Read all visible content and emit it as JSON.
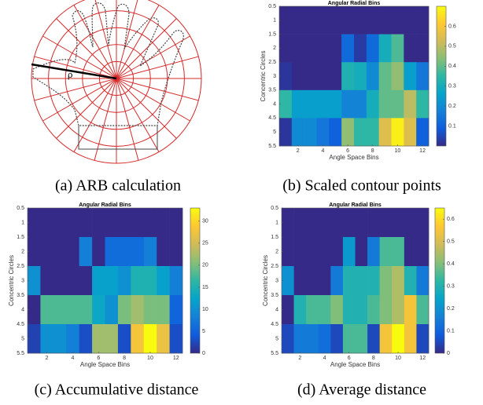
{
  "figure_a": {
    "caption": "(a) ARB calculation",
    "label": "ρ"
  },
  "chart_data": [
    {
      "type": "heatmap",
      "title": "Angular Radial Bins",
      "caption": "(b) Scaled contour points",
      "xlabel": "Angle Space Bins",
      "ylabel": "Concentric Circles",
      "colormap": "parula",
      "y_reversed": true,
      "x": [
        1,
        2,
        3,
        4,
        5,
        6,
        7,
        8,
        9,
        10,
        11,
        12
      ],
      "y": [
        1,
        2,
        3,
        4,
        5
      ],
      "xlim": [
        0.5,
        12.5
      ],
      "xticks": [
        2,
        4,
        6,
        8,
        10,
        12
      ],
      "ylim": [
        0.5,
        5.5
      ],
      "yticks": [
        0.5,
        1,
        1.5,
        2,
        2.5,
        3,
        3.5,
        4,
        4.5,
        5,
        5.5
      ],
      "clim": [
        0,
        0.7
      ],
      "cticks": [
        0.1,
        0.2,
        0.3,
        0.4,
        0.5,
        0.6
      ],
      "values": [
        [
          0,
          0,
          0,
          0,
          0,
          0,
          0,
          0,
          0,
          0,
          0,
          0
        ],
        [
          0,
          0,
          0,
          0,
          0,
          0.12,
          0.03,
          0.12,
          0.3,
          0.38,
          0,
          0
        ],
        [
          0.02,
          0,
          0,
          0,
          0,
          0.32,
          0.3,
          0.2,
          0.4,
          0.45,
          0.25,
          0.15
        ],
        [
          0.35,
          0.25,
          0.25,
          0.25,
          0.25,
          0.18,
          0.18,
          0.3,
          0.4,
          0.4,
          0.5,
          0.35
        ],
        [
          0.02,
          0.2,
          0.2,
          0.15,
          0.1,
          0.45,
          0.35,
          0.35,
          0.55,
          0.68,
          0.55,
          0.1
        ]
      ]
    },
    {
      "type": "heatmap",
      "title": "Angular Radial Bins",
      "caption": "(c) Accumulative distance",
      "xlabel": "Angle Space Bins",
      "ylabel": "Concentric Circles",
      "colormap": "parula",
      "y_reversed": true,
      "x": [
        1,
        2,
        3,
        4,
        5,
        6,
        7,
        8,
        9,
        10,
        11,
        12
      ],
      "y": [
        1,
        2,
        3,
        4,
        5
      ],
      "xlim": [
        0.5,
        12.5
      ],
      "xticks": [
        2,
        4,
        6,
        8,
        10,
        12
      ],
      "ylim": [
        0.5,
        5.5
      ],
      "yticks": [
        0.5,
        1,
        1.5,
        2,
        2.5,
        3,
        3.5,
        4,
        4.5,
        5,
        5.5
      ],
      "clim": [
        0,
        33
      ],
      "cticks": [
        0,
        5,
        10,
        15,
        20,
        25,
        30
      ],
      "values": [
        [
          0,
          0,
          0,
          0,
          0,
          0,
          0,
          0,
          0,
          0,
          0,
          0
        ],
        [
          0,
          0,
          0,
          0,
          8,
          0,
          6,
          6,
          6,
          8,
          0,
          0
        ],
        [
          10,
          0,
          0,
          0,
          0,
          12,
          12,
          10,
          15,
          15,
          12,
          8
        ],
        [
          0,
          18,
          18,
          18,
          18,
          13,
          10,
          20,
          22,
          20,
          20,
          5
        ],
        [
          2,
          10,
          10,
          8,
          3,
          22,
          22,
          3,
          28,
          33,
          27,
          3
        ]
      ]
    },
    {
      "type": "heatmap",
      "title": "Angular Radial Bins",
      "caption": "(d) Average distance",
      "xlabel": "Angle Space Bins",
      "ylabel": "Concentric Circles",
      "colormap": "parula",
      "y_reversed": true,
      "x": [
        1,
        2,
        3,
        4,
        5,
        6,
        7,
        8,
        9,
        10,
        11,
        12
      ],
      "y": [
        1,
        2,
        3,
        4,
        5
      ],
      "xlim": [
        0.5,
        12.5
      ],
      "xticks": [
        2,
        4,
        6,
        8,
        10,
        12
      ],
      "ylim": [
        0.5,
        5.5
      ],
      "yticks": [
        0.5,
        1,
        1.5,
        2,
        2.5,
        3,
        3.5,
        4,
        4.5,
        5,
        5.5
      ],
      "clim": [
        0,
        0.65
      ],
      "cticks": [
        0,
        0.1,
        0.2,
        0.3,
        0.4,
        0.5,
        0.6
      ],
      "values": [
        [
          0,
          0,
          0,
          0,
          0,
          0,
          0,
          0,
          0,
          0,
          0,
          0
        ],
        [
          0,
          0,
          0,
          0,
          0,
          0.22,
          0,
          0.15,
          0.35,
          0.35,
          0,
          0
        ],
        [
          0.2,
          0,
          0,
          0,
          0.15,
          0.3,
          0.3,
          0.3,
          0.4,
          0.45,
          0.3,
          0.15
        ],
        [
          0,
          0.3,
          0.35,
          0.35,
          0.4,
          0.3,
          0.3,
          0.35,
          0.4,
          0.45,
          0.55,
          0.35
        ],
        [
          0.05,
          0.15,
          0.15,
          0.12,
          0.05,
          0.35,
          0.35,
          0.05,
          0.55,
          0.65,
          0.55,
          0.05
        ]
      ]
    }
  ]
}
